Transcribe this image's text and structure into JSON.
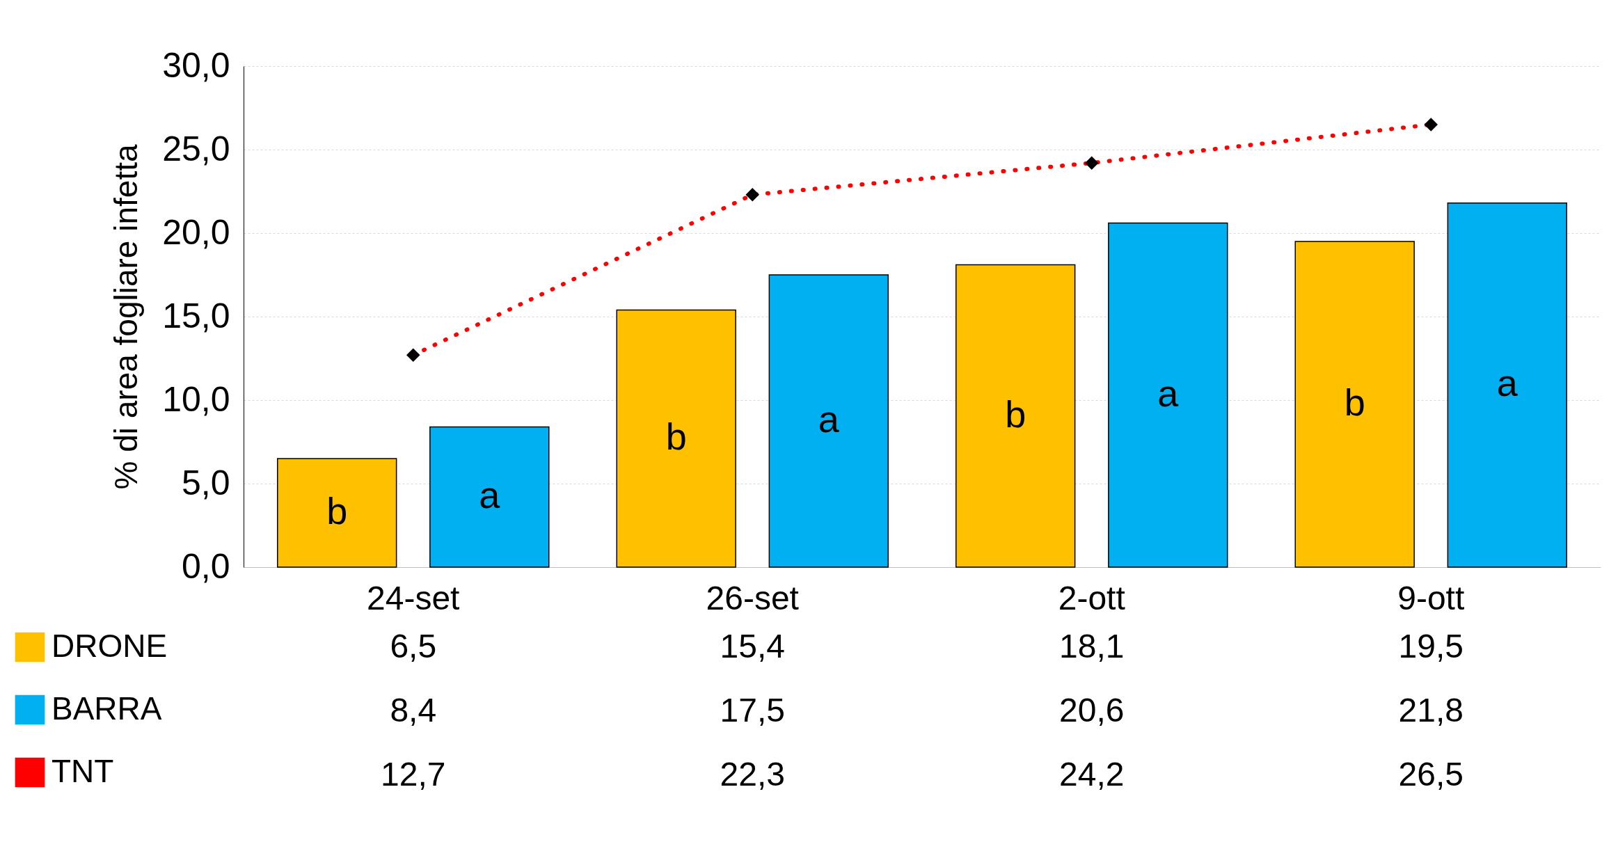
{
  "chart_data": {
    "type": "bar",
    "ylabel": "% di area fogliare infetta",
    "categories": [
      "24-set",
      "26-set",
      "2-ott",
      "9-ott"
    ],
    "series": [
      {
        "name": "DRONE",
        "color": "#ffc000",
        "values": [
          6.5,
          15.4,
          18.1,
          19.5
        ],
        "value_labels": [
          "6,5",
          "15,4",
          "18,1",
          "19,5"
        ]
      },
      {
        "name": "BARRA",
        "color": "#00b0f0",
        "values": [
          8.4,
          17.5,
          20.6,
          21.8
        ],
        "value_labels": [
          "8,4",
          "17,5",
          "20,6",
          "21,8"
        ]
      },
      {
        "name": "TNT",
        "type": "line",
        "color": "#ff0000",
        "values": [
          12.7,
          22.3,
          24.2,
          26.5
        ],
        "value_labels": [
          "12,7",
          "22,3",
          "24,2",
          "26,5"
        ]
      }
    ],
    "annotations": [
      "b",
      "a",
      "b",
      "a",
      "b",
      "a",
      "b",
      "a"
    ],
    "ylim": [
      0,
      30
    ],
    "yticks": [
      {
        "value": 0,
        "label": "0,0"
      },
      {
        "value": 5,
        "label": "5,0"
      },
      {
        "value": 10,
        "label": "10,0"
      },
      {
        "value": 15,
        "label": "15,0"
      },
      {
        "value": 20,
        "label": "20,0"
      },
      {
        "value": 25,
        "label": "25,0"
      },
      {
        "value": 30,
        "label": "30,0"
      }
    ],
    "grid": "y",
    "legend": "bottom",
    "marker": "diamond",
    "line_style": "dotted"
  }
}
